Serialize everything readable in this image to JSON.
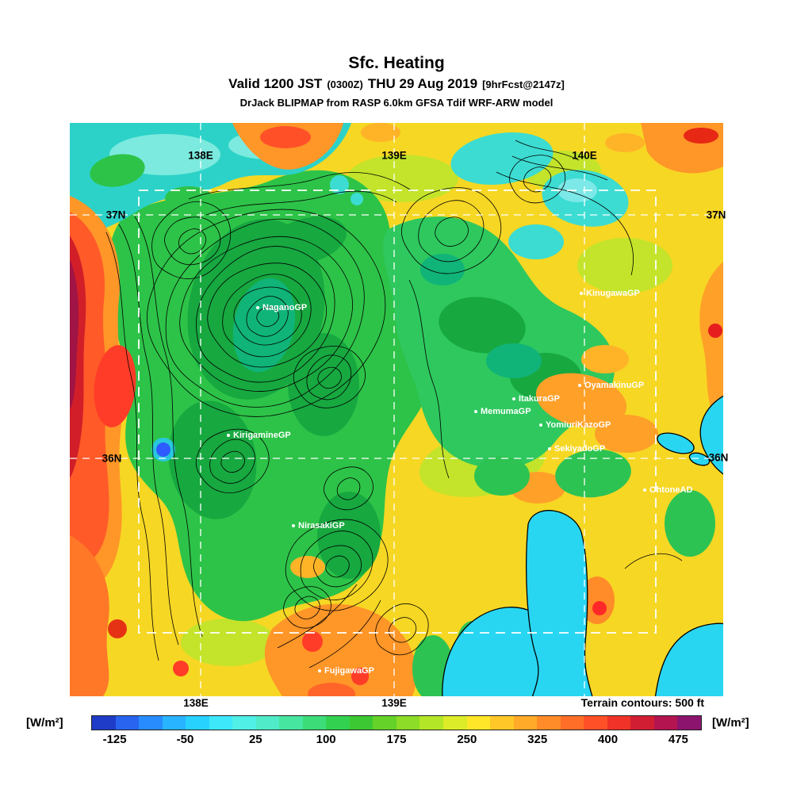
{
  "header": {
    "title": "Sfc. Heating",
    "valid": {
      "prefix": "Valid 1200 JST",
      "zulu": "(0300Z)",
      "date": "THU 29 Aug 2019",
      "fcst": "[9hrFcst@2147z]"
    },
    "model_line": "DrJack BLIPMAP from RASP 6.0km GFSA Tdif WRF-ARW model"
  },
  "map": {
    "grid_labels": {
      "top": [
        "138E",
        "139E",
        "140E"
      ],
      "bottom": [
        "138E",
        "139E"
      ],
      "left": [
        "37N",
        "36N"
      ],
      "right": [
        "37N",
        "36N"
      ]
    },
    "sites": [
      {
        "name": "NaganoGP"
      },
      {
        "name": "KinugawaGP"
      },
      {
        "name": "OyamakinuGP"
      },
      {
        "name": "ItakuraGP"
      },
      {
        "name": "MemumaGP"
      },
      {
        "name": "YomiuriKazoGP"
      },
      {
        "name": "SekiyadoGP"
      },
      {
        "name": "KirigamineGP"
      },
      {
        "name": "OhtoneAD"
      },
      {
        "name": "NirasakiGP"
      },
      {
        "name": "FujigawaGP"
      }
    ],
    "footnote": "Terrain contours: 500 ft"
  },
  "colorbar": {
    "unit_left": "[W/m²]",
    "unit_right": "[W/m²]",
    "range": [
      -150,
      500
    ],
    "ticks": [
      {
        "label": "-125",
        "value": -125
      },
      {
        "label": "-50",
        "value": -50
      },
      {
        "label": "25",
        "value": 25
      },
      {
        "label": "100",
        "value": 100
      },
      {
        "label": "175",
        "value": 175
      },
      {
        "label": "250",
        "value": 250
      },
      {
        "label": "325",
        "value": 325
      },
      {
        "label": "400",
        "value": 400
      },
      {
        "label": "475",
        "value": 475
      }
    ],
    "segment_colors": [
      "#1e3cc8",
      "#2864f0",
      "#288cff",
      "#28b4ff",
      "#28d2ff",
      "#3ce8fa",
      "#50f0e6",
      "#50ebc8",
      "#46e6a0",
      "#3cdc78",
      "#32d250",
      "#3cc832",
      "#64d228",
      "#8cdc28",
      "#b4e628",
      "#dcec28",
      "#ffe628",
      "#ffc828",
      "#ffaa28",
      "#ff8c28",
      "#ff6e28",
      "#ff5028",
      "#f03228",
      "#d21e32",
      "#b41450",
      "#8c146e"
    ]
  },
  "chart_data": {
    "type": "heatmap",
    "title": "Sfc. Heating",
    "units": "W/m²",
    "colorbar_range": [
      -150,
      500
    ],
    "colorbar_ticks": [
      -125,
      -50,
      25,
      100,
      175,
      250,
      325,
      400,
      475
    ],
    "contour_note": "Terrain contours: 500 ft"
  }
}
